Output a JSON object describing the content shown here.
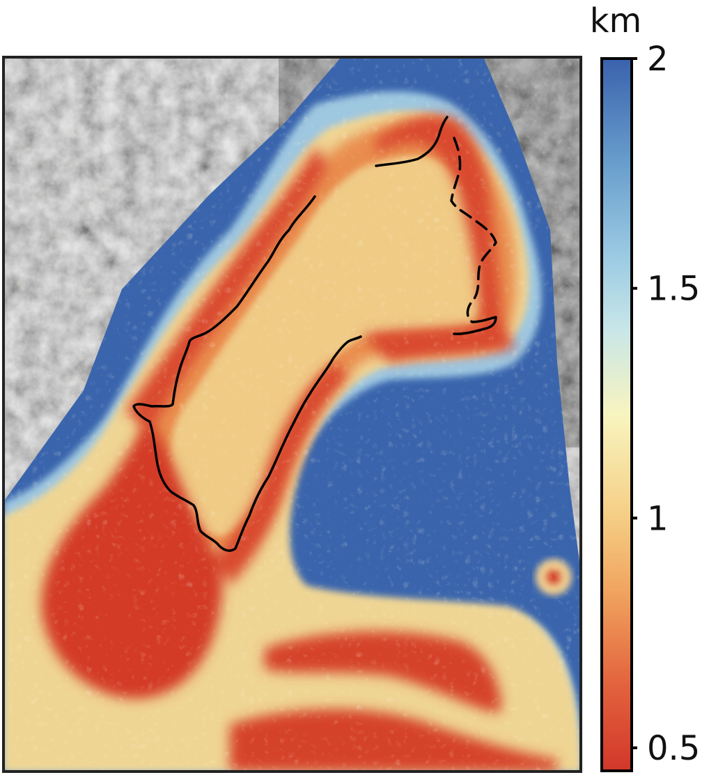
{
  "colorbar": {
    "unit": "km",
    "ticks": [
      {
        "value": 2,
        "label": "2"
      },
      {
        "value": 1.5,
        "label": "1.5"
      },
      {
        "value": 1,
        "label": "1"
      },
      {
        "value": 0.5,
        "label": "0.5"
      }
    ],
    "range": [
      0.45,
      2.0
    ],
    "colormap": [
      "#3a62ad",
      "#5f95c8",
      "#a5d1e6",
      "#f3f7c7",
      "#f3cd7c",
      "#ea8e4c",
      "#d2372a"
    ]
  },
  "map": {
    "basemap": "grayscale-terrain",
    "overlay": "distance-triangulation",
    "outline": "boundary-contour",
    "colors": {
      "far": "#3a65ad",
      "mid": "#efd594",
      "near": "#d33a27",
      "contour": "#000000"
    }
  }
}
